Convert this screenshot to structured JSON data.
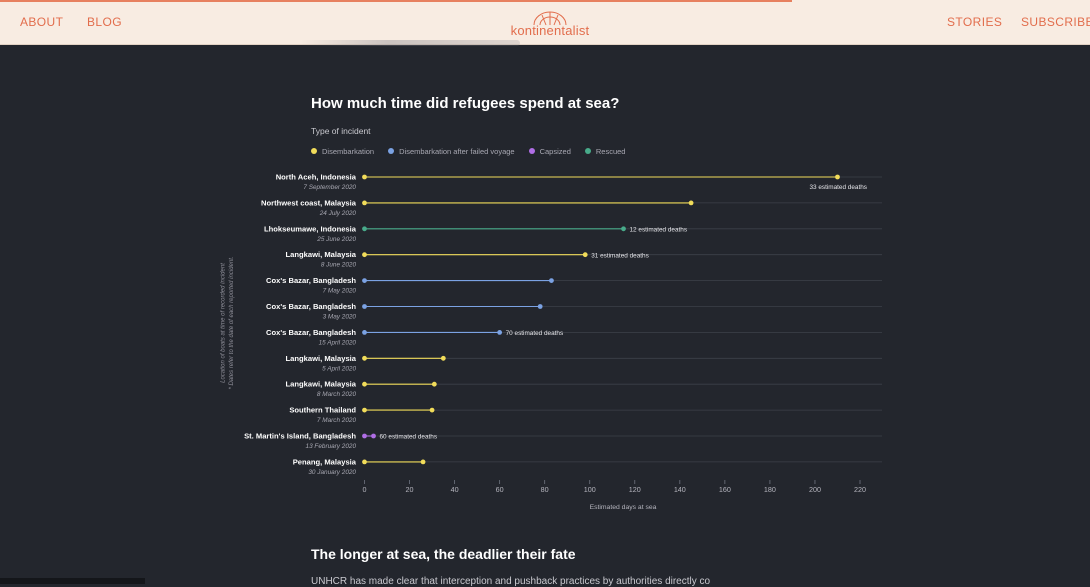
{
  "nav": {
    "about": "ABOUT",
    "blog": "BLOG",
    "logo": "kontinentalist",
    "stories": "STORIES",
    "subscribe": "SUBSCRIBE"
  },
  "colors": {
    "accent": "#e26d4c",
    "disembarkation": "#f1dc5a",
    "failed": "#7ba2e3",
    "capsized": "#b06ee6",
    "rescued": "#48ab8a",
    "background": "#23262d"
  },
  "legend": {
    "title": "Type of incident",
    "items": [
      {
        "label": "Disembarkation",
        "color": "#f1dc5a"
      },
      {
        "label": "Disembarkation after failed voyage",
        "color": "#7ba2e3"
      },
      {
        "label": "Capsized",
        "color": "#b06ee6"
      },
      {
        "label": "Rescued",
        "color": "#48ab8a"
      }
    ]
  },
  "chart_data": {
    "type": "dot-range",
    "title": "How much time did refugees spend at sea?",
    "xlabel": "Estimated days at sea",
    "ylabel": "Location of boats at time of recorded incident",
    "ylabel_note": "* Dates refer to the date of each reported incident.",
    "xlim": [
      0,
      220
    ],
    "xticks": [
      0,
      20,
      40,
      60,
      80,
      100,
      120,
      140,
      160,
      180,
      200,
      220
    ],
    "rows": [
      {
        "location": "North Aceh, Indonesia",
        "date": "7 September 2020",
        "days": 210,
        "type": "Disembarkation",
        "deaths": "33 estimated deaths",
        "label_pos": "below"
      },
      {
        "location": "Northwest coast, Malaysia",
        "date": "24 July 2020",
        "days": 145,
        "type": "Disembarkation",
        "deaths": ""
      },
      {
        "location": "Lhokseumawe, Indonesia",
        "date": "25 June 2020",
        "days": 115,
        "type": "Rescued",
        "deaths": "12 estimated deaths",
        "label_pos": "right"
      },
      {
        "location": "Langkawi, Malaysia",
        "date": "8 June 2020",
        "days": 98,
        "type": "Disembarkation",
        "deaths": "31 estimated deaths",
        "label_pos": "right"
      },
      {
        "location": "Cox's Bazar, Bangladesh",
        "date": "7 May 2020",
        "days": 83,
        "type": "Disembarkation after failed voyage",
        "deaths": ""
      },
      {
        "location": "Cox's Bazar, Bangladesh",
        "date": "3 May 2020",
        "days": 78,
        "type": "Disembarkation after failed voyage",
        "deaths": ""
      },
      {
        "location": "Cox's Bazar, Bangladesh",
        "date": "15 April 2020",
        "days": 60,
        "type": "Disembarkation after failed voyage",
        "deaths": "70 estimated deaths",
        "label_pos": "right"
      },
      {
        "location": "Langkawi, Malaysia",
        "date": "5 April 2020",
        "days": 35,
        "type": "Disembarkation",
        "deaths": ""
      },
      {
        "location": "Langkawi, Malaysia",
        "date": "8 March 2020",
        "days": 31,
        "type": "Disembarkation",
        "deaths": ""
      },
      {
        "location": "Southern Thailand",
        "date": "7 March 2020",
        "days": 30,
        "type": "Disembarkation",
        "deaths": ""
      },
      {
        "location": "St. Martin's Island, Bangladesh",
        "date": "13 February 2020",
        "days": 4,
        "type": "Capsized",
        "deaths": "60 estimated deaths",
        "label_pos": "right"
      },
      {
        "location": "Penang, Malaysia",
        "date": "30 January 2020",
        "days": 26,
        "type": "Disembarkation",
        "deaths": ""
      }
    ]
  },
  "next_section": {
    "title": "The longer at sea, the deadlier their fate",
    "paragraph_start": "UNHCR has made clear that interception and pushback practices by authorities directly co"
  }
}
